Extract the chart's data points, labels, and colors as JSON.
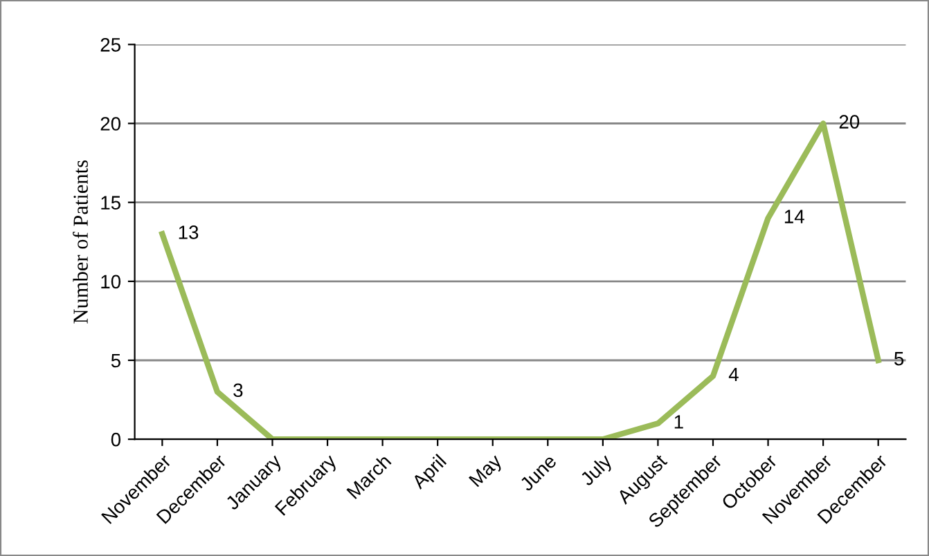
{
  "chart_data": {
    "type": "line",
    "ylabel": "Number of Patients",
    "categories": [
      "November",
      "December",
      "January",
      "February",
      "March",
      "April",
      "May",
      "June",
      "July",
      "August",
      "September",
      "October",
      "November",
      "December"
    ],
    "series": [
      {
        "color": "#9bbb59",
        "values": [
          13,
          3,
          0,
          0,
          0,
          0,
          0,
          0,
          0,
          1,
          4,
          14,
          20,
          5
        ],
        "value_labels": [
          "13",
          "3",
          null,
          null,
          null,
          null,
          null,
          null,
          null,
          "1",
          "4",
          "14",
          "20",
          "5"
        ]
      }
    ],
    "ylim": [
      0,
      25
    ],
    "yticks": [
      0,
      5,
      10,
      15,
      20,
      25
    ],
    "grid": "y",
    "marker": "none",
    "line_style": "solid",
    "legend": false
  }
}
